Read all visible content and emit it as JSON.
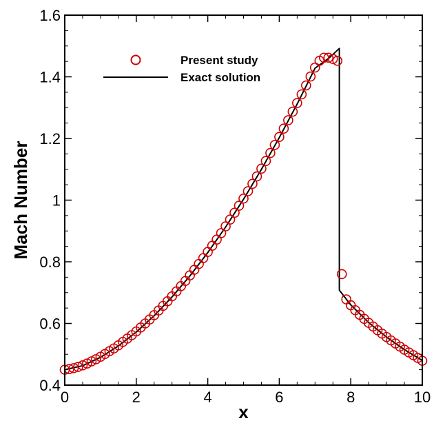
{
  "chart_data": {
    "type": "line",
    "title": "",
    "xlabel": "x",
    "ylabel": "Mach Number",
    "xlim": [
      0,
      10
    ],
    "ylim": [
      0.4,
      1.6
    ],
    "xticks": [
      "0",
      "2",
      "4",
      "6",
      "8",
      "10"
    ],
    "yticks": [
      "0.4",
      "0.6",
      "0.8",
      "1",
      "1.2",
      "1.4",
      "1.6"
    ],
    "grid": false,
    "legend_position": "top-left",
    "series": [
      {
        "name": "Present study",
        "style": "markers",
        "marker": "open-circle",
        "color": "#cc0000",
        "x": [
          0.0,
          0.125,
          0.25,
          0.375,
          0.5,
          0.625,
          0.75,
          0.875,
          1.0,
          1.125,
          1.25,
          1.375,
          1.5,
          1.625,
          1.75,
          1.875,
          2.0,
          2.125,
          2.25,
          2.375,
          2.5,
          2.625,
          2.75,
          2.875,
          3.0,
          3.125,
          3.25,
          3.375,
          3.5,
          3.625,
          3.75,
          3.875,
          4.0,
          4.125,
          4.25,
          4.375,
          4.5,
          4.625,
          4.75,
          4.875,
          5.0,
          5.125,
          5.25,
          5.375,
          5.5,
          5.625,
          5.75,
          5.875,
          6.0,
          6.125,
          6.25,
          6.375,
          6.5,
          6.625,
          6.75,
          6.875,
          7.0,
          7.125,
          7.25,
          7.375,
          7.5,
          7.625,
          7.75,
          7.875,
          8.0,
          8.125,
          8.25,
          8.375,
          8.5,
          8.625,
          8.75,
          8.875,
          9.0,
          9.125,
          9.25,
          9.375,
          9.5,
          9.625,
          9.75,
          9.875,
          10.0
        ],
        "y": [
          0.45,
          0.452,
          0.455,
          0.459,
          0.464,
          0.47,
          0.477,
          0.484,
          0.492,
          0.501,
          0.51,
          0.519,
          0.529,
          0.54,
          0.551,
          0.562,
          0.574,
          0.587,
          0.6,
          0.613,
          0.627,
          0.642,
          0.657,
          0.672,
          0.688,
          0.704,
          0.721,
          0.738,
          0.756,
          0.774,
          0.793,
          0.812,
          0.832,
          0.852,
          0.872,
          0.893,
          0.915,
          0.937,
          0.959,
          0.982,
          1.005,
          1.029,
          1.053,
          1.077,
          1.102,
          1.127,
          1.153,
          1.179,
          1.205,
          1.232,
          1.259,
          1.287,
          1.315,
          1.343,
          1.372,
          1.401,
          1.43,
          1.452,
          1.462,
          1.462,
          1.458,
          1.452,
          0.76,
          0.678,
          0.659,
          0.643,
          0.628,
          0.615,
          0.602,
          0.59,
          0.578,
          0.567,
          0.556,
          0.545,
          0.535,
          0.525,
          0.515,
          0.506,
          0.497,
          0.488,
          0.479
        ]
      },
      {
        "name": "Exact solution",
        "style": "line",
        "color": "#000000",
        "x": [
          0.0,
          0.5,
          1.0,
          1.5,
          2.0,
          2.5,
          3.0,
          3.5,
          4.0,
          4.5,
          5.0,
          5.5,
          6.0,
          6.5,
          7.0,
          7.4,
          7.68,
          7.68,
          8.0,
          8.5,
          9.0,
          9.5,
          10.0
        ],
        "y": [
          0.45,
          0.463,
          0.49,
          0.527,
          0.572,
          0.625,
          0.686,
          0.754,
          0.83,
          0.913,
          1.003,
          1.1,
          1.203,
          1.312,
          1.428,
          1.462,
          1.492,
          0.708,
          0.66,
          0.603,
          0.556,
          0.515,
          0.48
        ]
      }
    ]
  }
}
